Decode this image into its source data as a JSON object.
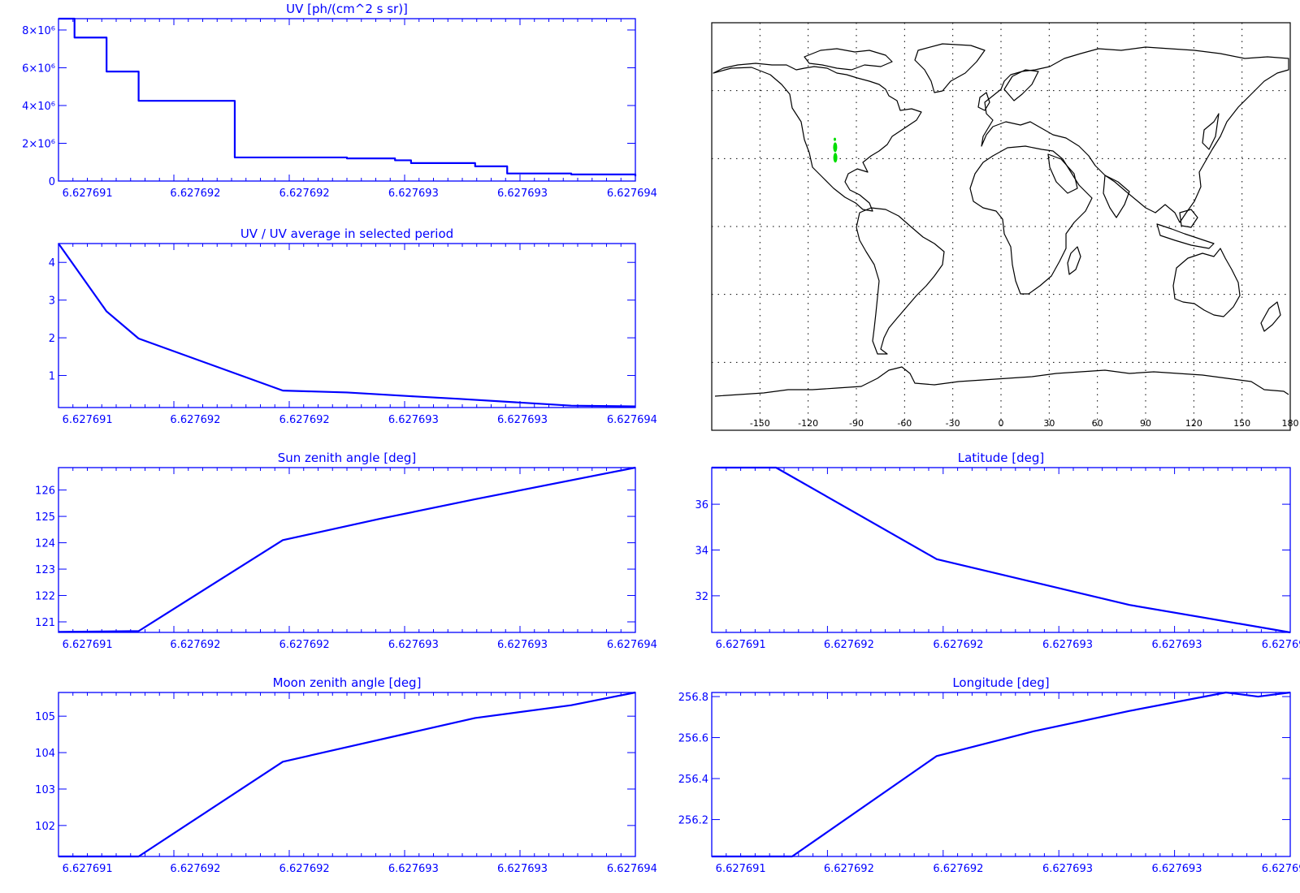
{
  "colors": {
    "plot": "#0000ff",
    "map_outline": "#000000",
    "map_highlight": "#00dd00",
    "background": "#ffffff"
  },
  "x_tick_labels": [
    "6.627691",
    "6.627692",
    "6.627692",
    "6.627693",
    "6.627693",
    "6.627694"
  ],
  "map": {
    "lon_tick_labels": [
      "-150",
      "-120",
      "-90",
      "-60",
      "-30",
      "0",
      "30",
      "60",
      "90",
      "120",
      "150",
      "180"
    ],
    "lon_ticks": [
      -150,
      -120,
      -90,
      -60,
      -30,
      0,
      30,
      60,
      90,
      120,
      150,
      180
    ],
    "lat_gridlines": [
      -60,
      -30,
      0,
      30,
      60
    ],
    "lon_range": [
      -180,
      180
    ],
    "lat_range": [
      -90,
      90
    ],
    "track": [
      {
        "lon": -103.4,
        "lat": 38.5
      },
      {
        "lon": -103.2,
        "lat": 35.0
      },
      {
        "lon": -103.1,
        "lat": 30.4
      }
    ],
    "grid": "dotted"
  },
  "chart_data": [
    {
      "id": "uv",
      "type": "line",
      "step": true,
      "title": "UV [ph/(cm^2 s sr)]",
      "xlim": [
        6.627691,
        6.6276946
      ],
      "ylim": [
        0,
        8600000
      ],
      "y_tick_values": [
        0,
        2000000,
        4000000,
        6000000,
        8000000
      ],
      "y_tick_labels": [
        "0",
        "2×10⁶",
        "4×10⁶",
        "6×10⁶",
        "8×10⁶"
      ],
      "x": [
        6.627691,
        6.6276911,
        6.6276913,
        6.6276915,
        6.6276921,
        6.6276928,
        6.6276931,
        6.6276932,
        6.6276936,
        6.6276938,
        6.6276942,
        6.6276946
      ],
      "y": [
        8600000,
        7600000,
        5800000,
        4250000,
        1250000,
        1200000,
        1100000,
        950000,
        780000,
        400000,
        350000,
        250000
      ]
    },
    {
      "id": "uv_ratio",
      "type": "line",
      "title": "UV / UV average in selected period",
      "xlim": [
        6.627691,
        6.6276946
      ],
      "ylim": [
        0.15,
        4.5
      ],
      "y_tick_values": [
        1,
        2,
        3,
        4
      ],
      "y_tick_labels": [
        "1",
        "2",
        "3",
        "4"
      ],
      "x": [
        6.627691,
        6.6276913,
        6.6276915,
        6.6276924,
        6.6276928,
        6.6276932,
        6.6276935,
        6.6276942,
        6.6276946
      ],
      "y": [
        4.5,
        2.7,
        1.98,
        0.6,
        0.55,
        0.45,
        0.38,
        0.2,
        0.18
      ]
    },
    {
      "id": "sun_zenith",
      "type": "line",
      "title": "Sun zenith angle [deg]",
      "xlim": [
        6.627691,
        6.6276946
      ],
      "ylim": [
        120.6,
        126.85
      ],
      "y_tick_values": [
        121,
        122,
        123,
        124,
        125,
        126
      ],
      "y_tick_labels": [
        "121",
        "122",
        "123",
        "124",
        "125",
        "126"
      ],
      "x": [
        6.627691,
        6.6276915,
        6.6276924,
        6.627693,
        6.6276936,
        6.6276946
      ],
      "y": [
        120.62,
        120.65,
        124.1,
        124.9,
        125.65,
        126.85
      ]
    },
    {
      "id": "latitude",
      "type": "line",
      "title": "Latitude [deg]",
      "xlim": [
        6.627691,
        6.6276946
      ],
      "ylim": [
        30.4,
        37.6
      ],
      "y_tick_values": [
        32,
        34,
        36
      ],
      "y_tick_labels": [
        "32",
        "34",
        "36"
      ],
      "x": [
        6.627691,
        6.6276914,
        6.6276924,
        6.627693,
        6.6276936,
        6.6276946
      ],
      "y": [
        37.6,
        37.6,
        33.6,
        32.6,
        31.6,
        30.4
      ]
    },
    {
      "id": "moon_zenith",
      "type": "line",
      "title": "Moon zenith angle [deg]",
      "xlim": [
        6.627691,
        6.6276946
      ],
      "ylim": [
        101.15,
        105.65
      ],
      "y_tick_values": [
        102,
        103,
        104,
        105
      ],
      "y_tick_labels": [
        "102",
        "103",
        "104",
        "105"
      ],
      "x": [
        6.627691,
        6.6276915,
        6.6276924,
        6.6276928,
        6.6276932,
        6.6276936,
        6.6276942,
        6.6276946
      ],
      "y": [
        101.15,
        101.15,
        103.75,
        104.15,
        104.55,
        104.95,
        105.3,
        105.65
      ]
    },
    {
      "id": "longitude",
      "type": "line",
      "title": "Longitude [deg]",
      "xlim": [
        6.627691,
        6.6276946
      ],
      "ylim": [
        256.02,
        256.82
      ],
      "y_tick_values": [
        256.2,
        256.4,
        256.6,
        256.8
      ],
      "y_tick_labels": [
        "256.2",
        "256.4",
        "256.6",
        "256.8"
      ],
      "x": [
        6.627691,
        6.6276915,
        6.6276924,
        6.627693,
        6.6276936,
        6.6276942,
        6.6276944,
        6.6276946
      ],
      "y": [
        256.02,
        256.02,
        256.51,
        256.63,
        256.73,
        256.82,
        256.8,
        256.82
      ]
    }
  ]
}
